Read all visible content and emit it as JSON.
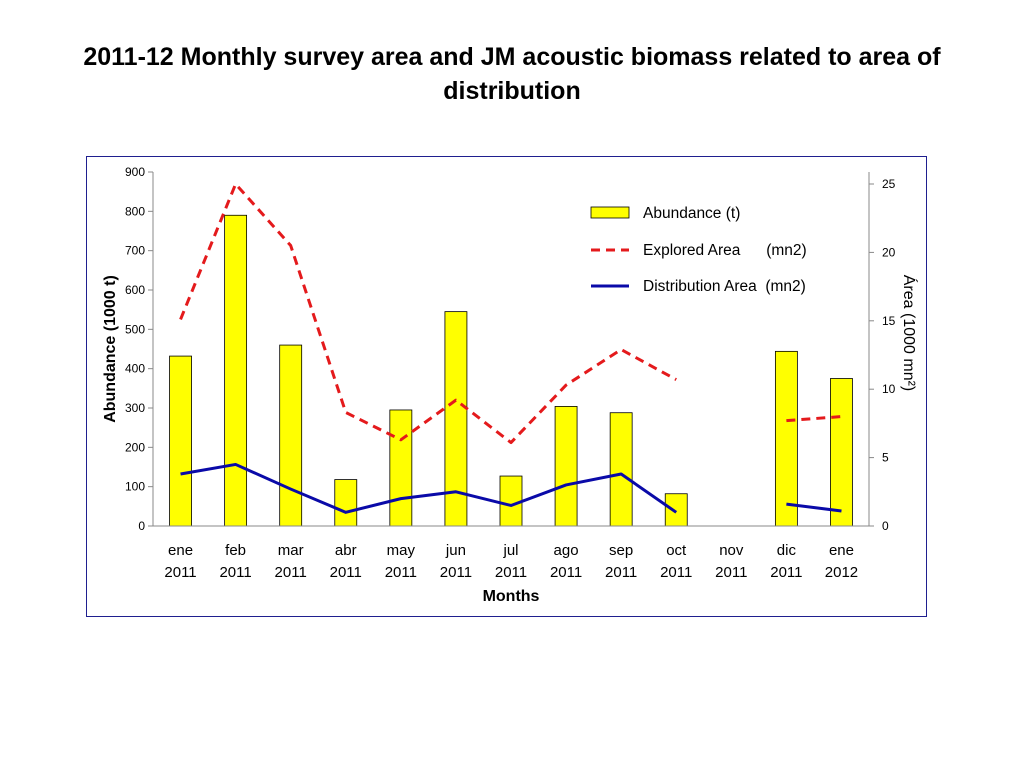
{
  "slide": {
    "title": "2011-12 Monthly survey area and JM acoustic biomass related to area of distribution"
  },
  "chart_data": {
    "type": "bar",
    "categories": [
      [
        "ene",
        "2011"
      ],
      [
        "feb",
        "2011"
      ],
      [
        "mar",
        "2011"
      ],
      [
        "abr",
        "2011"
      ],
      [
        "may",
        "2011"
      ],
      [
        "jun",
        "2011"
      ],
      [
        "jul",
        "2011"
      ],
      [
        "ago",
        "2011"
      ],
      [
        "sep",
        "2011"
      ],
      [
        "oct",
        "2011"
      ],
      [
        "nov",
        "2011"
      ],
      [
        "dic",
        "2011"
      ],
      [
        "ene",
        "2012"
      ]
    ],
    "xlabel": "Months",
    "ylabel": "Abundance (1000 t)",
    "ylim": [
      0,
      900
    ],
    "yticks": [
      "0",
      "100",
      "200",
      "300",
      "400",
      "500",
      "600",
      "700",
      "800",
      "900"
    ],
    "y2label": "Área (1000 mn²)",
    "y2lim": [
      0,
      25
    ],
    "y2ticks": [
      "0",
      "5",
      "10",
      "15",
      "20",
      "25"
    ],
    "series": [
      {
        "name": "Abundance (t)",
        "kind": "bar",
        "axis": "left",
        "color": "#ffff00",
        "values": [
          432,
          790,
          460,
          118,
          295,
          545,
          127,
          304,
          288,
          82,
          null,
          444,
          375
        ]
      },
      {
        "name": "Explored Area      (mn2)",
        "kind": "line",
        "style": "dashed",
        "axis": "right",
        "color": "#e41a1c",
        "values": [
          15.1,
          25.0,
          20.5,
          8.3,
          6.3,
          9.2,
          6.1,
          10.3,
          12.9,
          10.7,
          null,
          7.7,
          8.0
        ]
      },
      {
        "name": "Distribution Area  (mn2)",
        "kind": "line",
        "style": "solid",
        "axis": "right",
        "color": "#0a0aa8",
        "values": [
          3.8,
          4.5,
          2.7,
          1.0,
          2.0,
          2.5,
          1.5,
          3.0,
          3.8,
          1.0,
          null,
          1.6,
          1.1
        ]
      }
    ],
    "legend_position": "top-right",
    "grid": false
  }
}
